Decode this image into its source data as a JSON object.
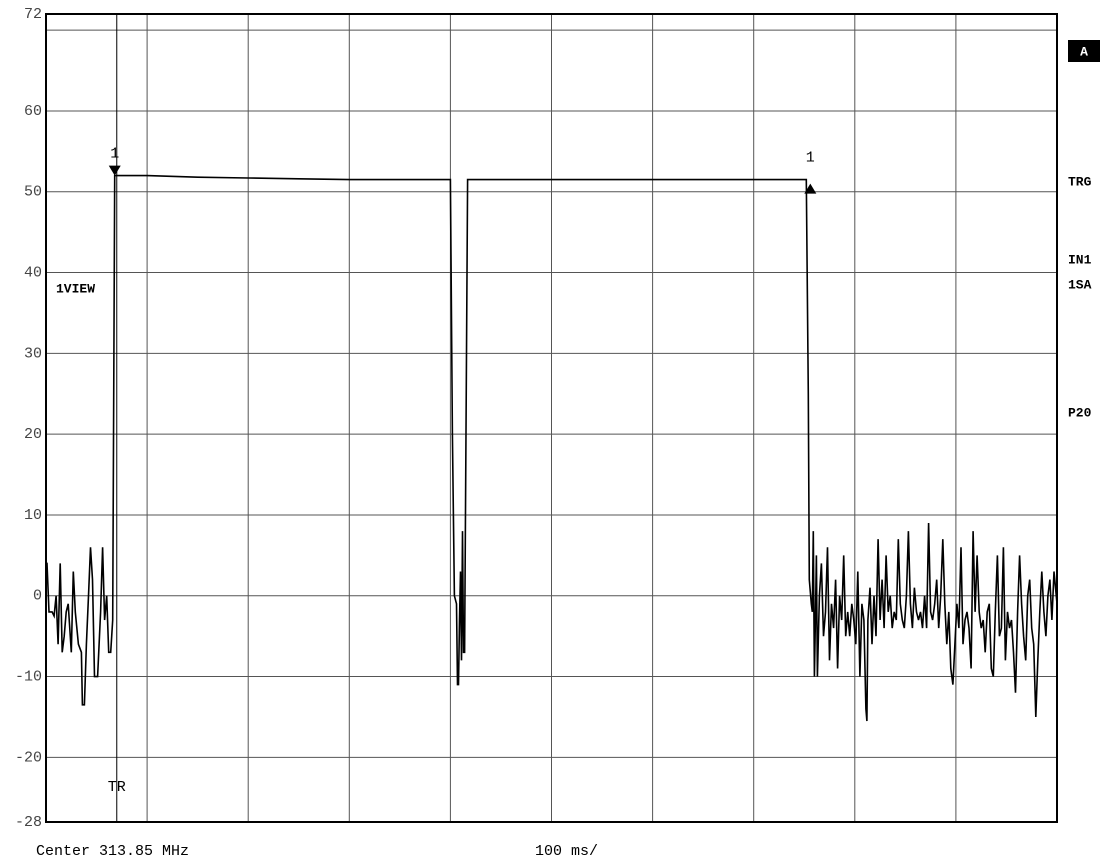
{
  "chart_data": {
    "type": "line",
    "footer_left": "Center 313.85 MHz",
    "footer_center": "100 ms/",
    "trace_label": "1VIEW",
    "side_labels": [
      "TRG",
      "IN1",
      "1SA",
      "P20"
    ],
    "side_box": "A",
    "trigger": {
      "label": "TR",
      "x": 70
    },
    "markers": [
      {
        "label": "1",
        "x": 68,
        "y": 52,
        "shape": "down"
      },
      {
        "label": "1",
        "x": 756,
        "y": 51,
        "shape": "up"
      }
    ],
    "xlim": [
      0,
      1000
    ],
    "xgrid": [
      100,
      200,
      300,
      400,
      500,
      600,
      700,
      800,
      900
    ],
    "ylim": [
      -28,
      72
    ],
    "yticks": [
      72,
      60,
      50,
      40,
      30,
      20,
      10,
      0,
      -10,
      -20,
      -28
    ],
    "ygrid": [
      70,
      60,
      50,
      40,
      30,
      20,
      10,
      0,
      -10,
      -20
    ],
    "grid": true,
    "color": "#000000",
    "x": [
      0,
      1,
      3,
      6,
      8,
      10,
      12,
      14,
      16,
      18,
      20,
      22,
      25,
      27,
      29,
      32,
      35,
      36,
      38,
      40,
      42,
      44,
      46,
      48,
      51,
      54,
      56,
      58,
      60,
      62,
      64,
      66,
      68,
      75,
      100,
      150,
      200,
      250,
      300,
      350,
      400,
      402,
      404,
      406,
      407,
      408,
      409,
      410,
      411,
      412,
      413,
      414,
      417,
      420,
      500,
      600,
      700,
      752,
      754,
      755,
      757,
      758,
      759,
      760,
      761,
      762,
      763,
      765,
      767,
      769,
      771,
      773,
      775,
      777,
      779,
      781,
      783,
      785,
      787,
      789,
      791,
      793,
      795,
      797,
      799,
      801,
      803,
      805,
      807,
      809,
      811,
      812,
      813,
      815,
      817,
      819,
      821,
      823,
      825,
      827,
      829,
      831,
      833,
      835,
      837,
      839,
      841,
      843,
      845,
      847,
      849,
      851,
      853,
      855,
      857,
      859,
      861,
      863,
      865,
      867,
      869,
      871,
      873,
      875,
      877,
      879,
      881,
      883,
      885,
      887,
      889,
      891,
      893,
      895,
      897,
      899,
      901,
      903,
      905,
      907,
      909,
      911,
      913,
      915,
      917,
      919,
      921,
      923,
      925,
      927,
      929,
      931,
      933,
      935,
      937,
      939,
      941,
      943,
      945,
      947,
      949,
      951,
      953,
      955,
      957,
      959,
      961,
      963,
      965,
      967,
      969,
      971,
      973,
      975,
      977,
      979,
      981,
      983,
      985,
      987,
      989,
      991,
      993,
      995,
      997,
      1000
    ],
    "values": [
      4,
      4,
      -2,
      -2,
      -2.5,
      0,
      -6,
      4,
      -7,
      -5,
      -2,
      -1,
      -7,
      3,
      -2,
      -6,
      -7,
      -13.5,
      -13.5,
      -6,
      0,
      6,
      2,
      -10,
      -10,
      -2,
      6,
      -3,
      0,
      -7,
      -7,
      -3,
      52,
      52,
      52,
      51.8,
      51.7,
      51.6,
      51.5,
      51.5,
      51.5,
      20,
      0,
      -1,
      -11,
      -11,
      -3,
      3,
      -8,
      8,
      -7,
      -7,
      51.5,
      51.5,
      51.5,
      51.5,
      51.5,
      51.5,
      25,
      2,
      -1,
      -2,
      8,
      -10,
      -3,
      5,
      -10,
      0,
      4,
      -5,
      -2,
      6,
      -8,
      -1,
      -4,
      2,
      -9,
      0,
      -3,
      5,
      -5,
      -2,
      -5,
      -1,
      -3,
      -6,
      3,
      -10,
      -1,
      -3,
      -14,
      -15.5,
      -3,
      1,
      -6,
      0,
      -5,
      7,
      -3,
      2,
      -4,
      5,
      -2,
      0,
      -4,
      -2,
      -3,
      7,
      -1,
      -3,
      -4,
      0,
      8,
      -1,
      -4,
      1,
      -2,
      -3,
      -2,
      -4,
      0,
      -4,
      9,
      -2,
      -3,
      -1,
      2,
      -4,
      0,
      7,
      -1,
      -6,
      -2,
      -9,
      -11,
      -6,
      -1,
      -4,
      6,
      -6,
      -3,
      -2,
      -4,
      -9,
      8,
      -2,
      5,
      -2,
      -4,
      -3,
      -7,
      -2,
      -1,
      -9,
      -10,
      -2,
      5,
      -5,
      -4,
      6,
      -8,
      -2,
      -4,
      -3,
      -7,
      -12,
      -2,
      5,
      -1,
      -5,
      -8,
      0,
      2,
      -4,
      -6,
      -15,
      -8,
      -2,
      3,
      -2,
      -5,
      0,
      2,
      -3,
      3,
      -1
    ]
  }
}
